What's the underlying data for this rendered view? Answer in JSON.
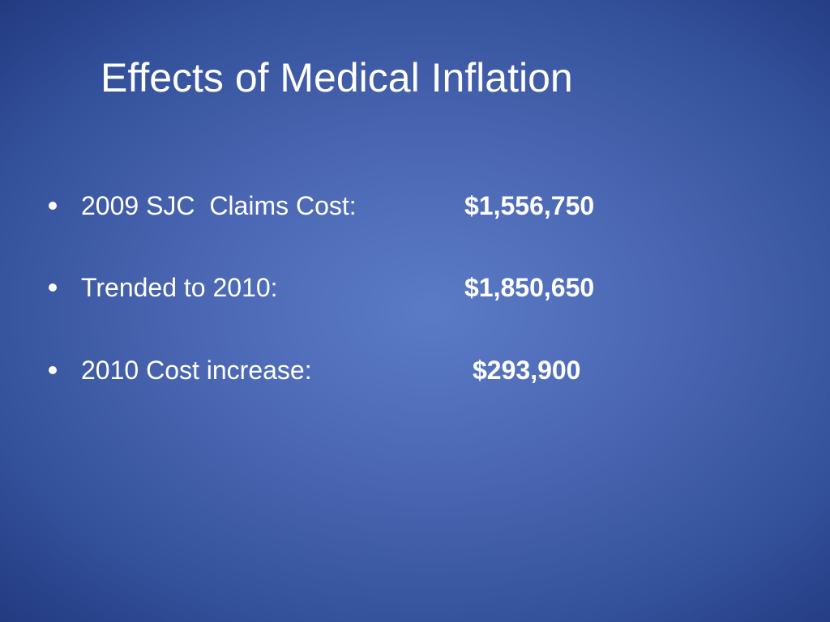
{
  "title": "Effects of Medical Inflation",
  "items": [
    {
      "label": "2009 SJC  Claims Cost:",
      "value": "$1,556,750"
    },
    {
      "label": "Trended to 2010:",
      "value": "$1,850,650"
    },
    {
      "label": "2010 Cost increase:",
      "value": "$293,900"
    }
  ]
}
